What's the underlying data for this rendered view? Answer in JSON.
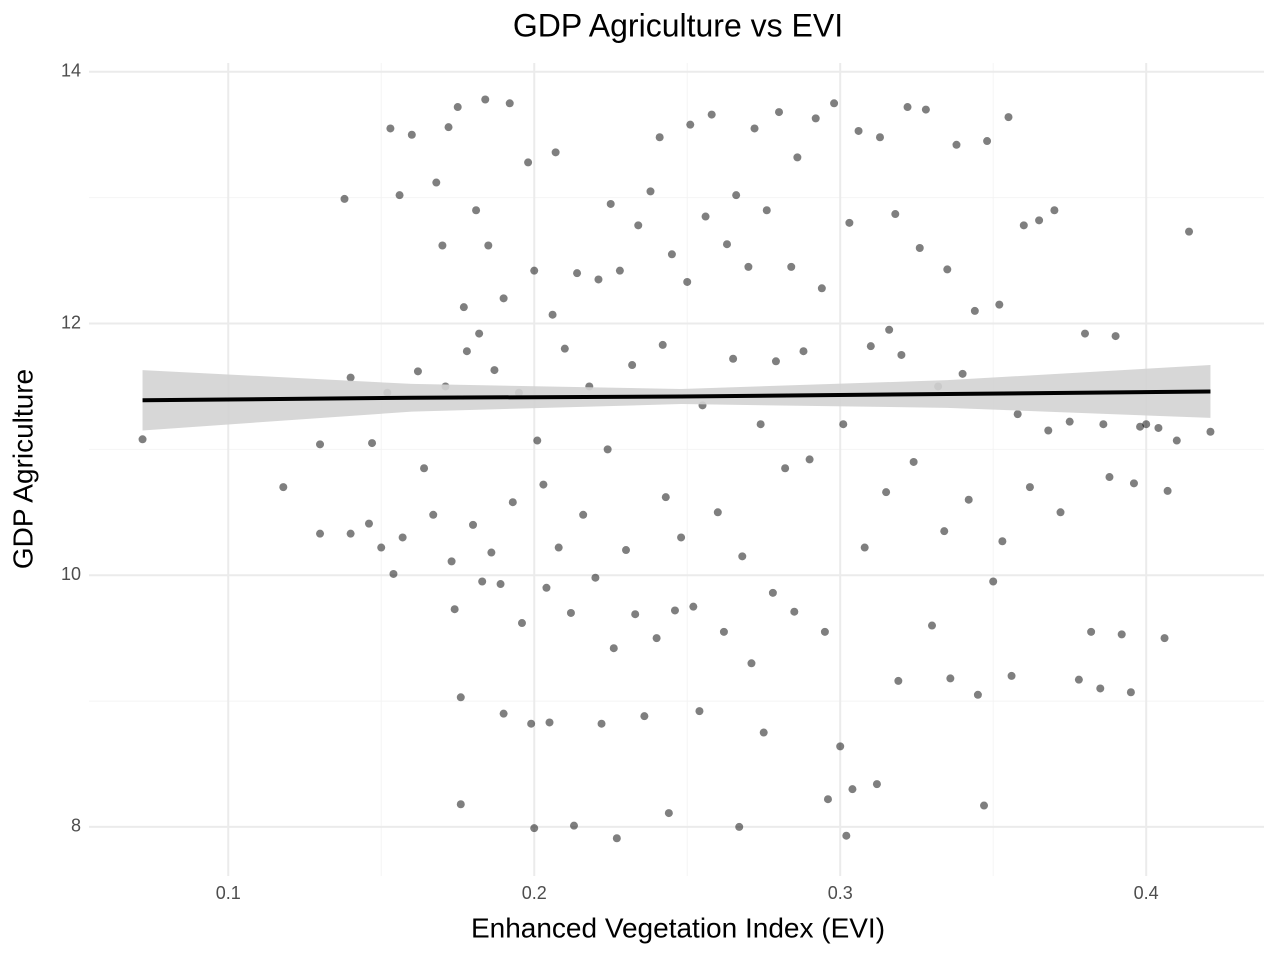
{
  "chart_data": {
    "type": "scatter",
    "title": "GDP Agriculture vs EVI",
    "x_label": "Enhanced Vegetation Index (EVI)",
    "y_label": "GDP Agriculture",
    "xlim": [
      0.0545,
      0.4385
    ],
    "ylim": [
      7.61,
      14.07
    ],
    "xticks": [
      0.1,
      0.2,
      0.3,
      0.4
    ],
    "yticks": [
      8,
      10,
      12,
      14
    ],
    "x_minor_ticks": [
      0.15,
      0.25,
      0.35
    ],
    "y_minor_ticks": [
      9,
      11,
      13
    ],
    "grid": true,
    "color": "#000000",
    "x": [
      0.072,
      0.118,
      0.13,
      0.13,
      0.138,
      0.14,
      0.14,
      0.146,
      0.147,
      0.15,
      0.152,
      0.153,
      0.154,
      0.156,
      0.157,
      0.16,
      0.162,
      0.164,
      0.167,
      0.168,
      0.17,
      0.171,
      0.172,
      0.173,
      0.174,
      0.175,
      0.176,
      0.176,
      0.177,
      0.178,
      0.18,
      0.181,
      0.182,
      0.183,
      0.184,
      0.185,
      0.186,
      0.187,
      0.189,
      0.19,
      0.19,
      0.192,
      0.193,
      0.195,
      0.196,
      0.198,
      0.199,
      0.2,
      0.2,
      0.201,
      0.203,
      0.204,
      0.205,
      0.206,
      0.207,
      0.208,
      0.21,
      0.212,
      0.213,
      0.214,
      0.216,
      0.218,
      0.22,
      0.221,
      0.222,
      0.224,
      0.225,
      0.226,
      0.227,
      0.228,
      0.23,
      0.232,
      0.233,
      0.234,
      0.236,
      0.238,
      0.24,
      0.241,
      0.242,
      0.243,
      0.244,
      0.245,
      0.246,
      0.248,
      0.25,
      0.251,
      0.252,
      0.254,
      0.255,
      0.256,
      0.258,
      0.26,
      0.262,
      0.263,
      0.265,
      0.266,
      0.267,
      0.268,
      0.27,
      0.271,
      0.272,
      0.274,
      0.275,
      0.276,
      0.278,
      0.279,
      0.28,
      0.282,
      0.284,
      0.285,
      0.286,
      0.288,
      0.29,
      0.292,
      0.294,
      0.295,
      0.296,
      0.298,
      0.3,
      0.301,
      0.302,
      0.303,
      0.304,
      0.306,
      0.308,
      0.31,
      0.312,
      0.313,
      0.315,
      0.316,
      0.318,
      0.319,
      0.32,
      0.322,
      0.324,
      0.326,
      0.328,
      0.33,
      0.332,
      0.334,
      0.335,
      0.336,
      0.338,
      0.34,
      0.342,
      0.344,
      0.345,
      0.347,
      0.348,
      0.35,
      0.352,
      0.353,
      0.355,
      0.356,
      0.358,
      0.36,
      0.362,
      0.365,
      0.368,
      0.37,
      0.372,
      0.375,
      0.378,
      0.38,
      0.382,
      0.385,
      0.386,
      0.388,
      0.39,
      0.392,
      0.395,
      0.396,
      0.398,
      0.4,
      0.404,
      0.406,
      0.407,
      0.41,
      0.414,
      0.421
    ],
    "values": [
      11.08,
      10.7,
      10.33,
      11.04,
      12.99,
      11.57,
      10.33,
      10.41,
      11.05,
      10.22,
      11.45,
      13.55,
      10.01,
      13.02,
      10.3,
      13.5,
      11.62,
      10.85,
      10.48,
      13.12,
      12.62,
      11.5,
      13.56,
      10.11,
      9.73,
      13.72,
      8.18,
      9.03,
      12.13,
      11.78,
      10.4,
      12.9,
      11.92,
      9.95,
      13.78,
      12.62,
      10.18,
      11.63,
      9.93,
      8.9,
      12.2,
      13.75,
      10.58,
      11.45,
      9.62,
      13.28,
      8.82,
      7.99,
      12.42,
      11.07,
      10.72,
      9.9,
      8.83,
      12.07,
      13.36,
      10.22,
      11.8,
      9.7,
      8.01,
      12.4,
      10.48,
      11.5,
      9.98,
      12.35,
      8.82,
      11.0,
      12.95,
      9.42,
      7.91,
      12.42,
      10.2,
      11.67,
      9.69,
      12.78,
      8.88,
      13.05,
      9.5,
      13.48,
      11.83,
      10.62,
      8.11,
      12.55,
      9.72,
      10.3,
      12.33,
      13.58,
      9.75,
      8.92,
      11.35,
      12.85,
      13.66,
      10.5,
      9.55,
      12.63,
      11.72,
      13.02,
      8.0,
      10.15,
      12.45,
      9.3,
      13.55,
      11.2,
      8.75,
      12.9,
      9.86,
      11.7,
      13.68,
      10.85,
      12.45,
      9.71,
      13.32,
      11.78,
      10.92,
      13.63,
      12.28,
      9.55,
      8.22,
      13.75,
      8.64,
      11.2,
      7.93,
      12.8,
      8.3,
      13.53,
      10.22,
      11.82,
      8.34,
      13.48,
      10.66,
      11.95,
      12.87,
      9.16,
      11.75,
      13.72,
      10.9,
      12.6,
      13.7,
      9.6,
      11.5,
      10.35,
      12.43,
      9.18,
      13.42,
      11.6,
      10.6,
      12.1,
      9.05,
      8.17,
      13.45,
      9.95,
      12.15,
      10.27,
      13.64,
      9.2,
      11.28,
      12.78,
      10.7,
      12.82,
      11.15,
      12.9,
      10.5,
      11.22,
      9.17,
      11.92,
      9.55,
      9.1,
      11.2,
      10.78,
      11.9,
      9.53,
      9.07,
      10.73,
      11.18,
      11.2,
      11.17,
      9.5,
      10.67,
      11.07,
      12.73,
      11.14
    ],
    "trend": {
      "color": "#000000",
      "band_color": "#d3d3d3",
      "x": [
        0.072,
        0.16,
        0.248,
        0.335,
        0.421
      ],
      "values": [
        11.39,
        11.41,
        11.42,
        11.44,
        11.46
      ],
      "lower": [
        11.15,
        11.3,
        11.36,
        11.33,
        11.25
      ],
      "upper": [
        11.63,
        11.52,
        11.48,
        11.55,
        11.67
      ]
    }
  }
}
